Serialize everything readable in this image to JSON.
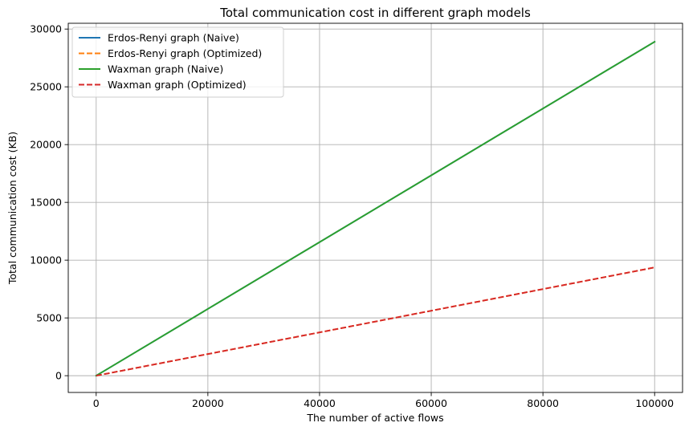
{
  "chart_data": {
    "type": "line",
    "title": "Total communication cost in different graph models",
    "xlabel": "The number of active flows",
    "ylabel": "Total communication cost (KB)",
    "xlim": [
      -5000,
      105000
    ],
    "ylim": [
      -1450,
      30500
    ],
    "xticks": [
      0,
      20000,
      40000,
      60000,
      80000,
      100000
    ],
    "yticks": [
      0,
      5000,
      10000,
      15000,
      20000,
      25000,
      30000
    ],
    "grid": true,
    "legend_position": "top-left",
    "series": [
      {
        "name": "Erdos-Renyi graph (Naive)",
        "color": "#1f77b4",
        "dash": "solid",
        "x": [
          0,
          100000
        ],
        "y": [
          0,
          28900
        ]
      },
      {
        "name": "Erdos-Renyi graph (Optimized)",
        "color": "#ff7f0e",
        "dash": "dashed",
        "x": [
          0,
          100000
        ],
        "y": [
          0,
          9370
        ]
      },
      {
        "name": "Waxman graph (Naive)",
        "color": "#2ca02c",
        "dash": "solid",
        "x": [
          0,
          100000
        ],
        "y": [
          0,
          28900
        ]
      },
      {
        "name": "Waxman graph (Optimized)",
        "color": "#d62728",
        "dash": "dashed",
        "x": [
          0,
          100000
        ],
        "y": [
          0,
          9370
        ]
      }
    ]
  }
}
